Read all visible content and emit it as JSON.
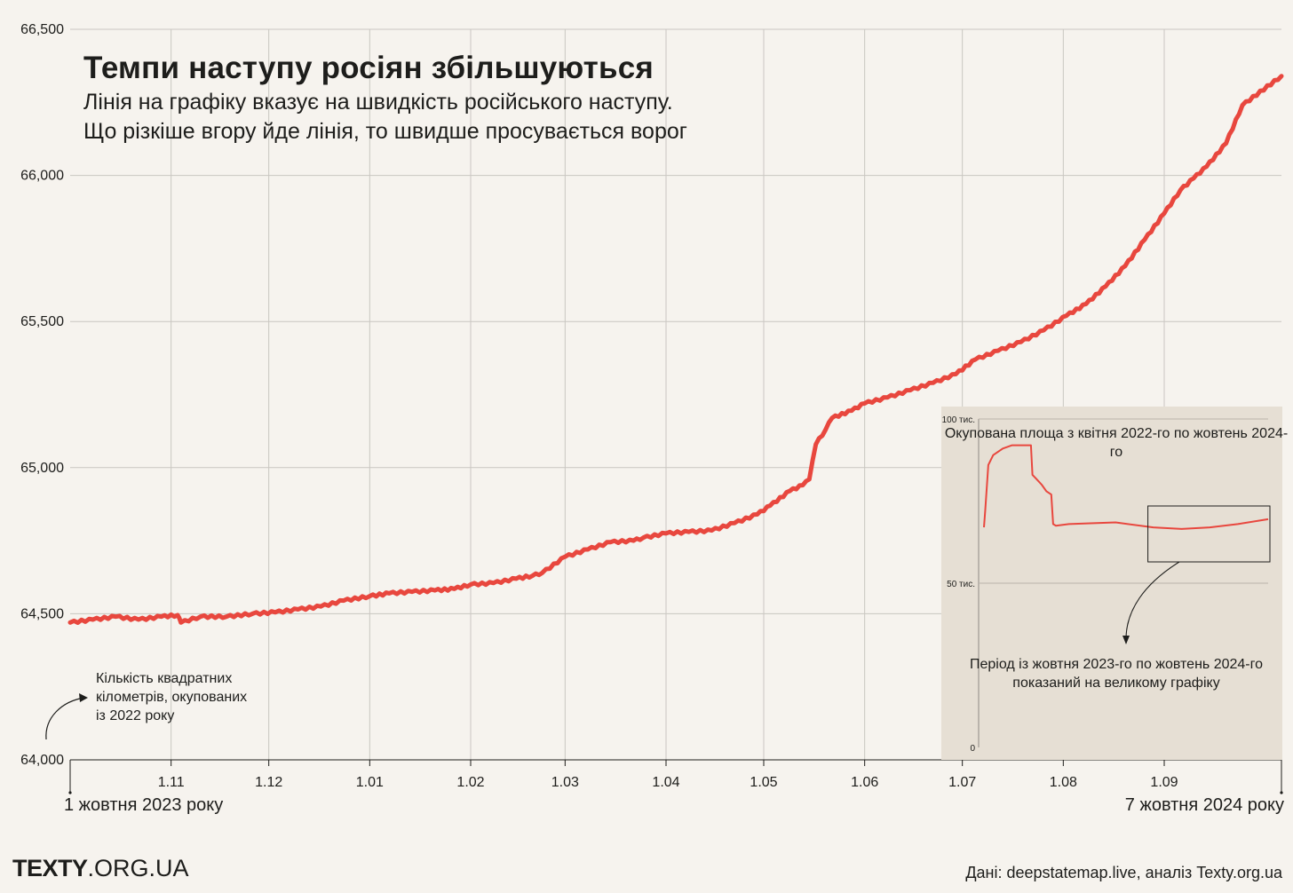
{
  "header": {
    "title": "Темпи наступу росіян збільшуються",
    "subtitle_line1": "Лінія на графіку вказує на швидкість російського наступу.",
    "subtitle_line2": "Що різкіше вгору йде лінія, то швидше просувається ворог"
  },
  "annotations": {
    "ylabel_line1": "Кількість квадратних",
    "ylabel_line2": "кілометрів, окупованих",
    "ylabel_line3": "із 2022 року",
    "start_date": "1 жовтня 2023 року",
    "end_date": "7 жовтня 2024 року"
  },
  "footer": {
    "brand_bold": "TEXTY",
    "brand_rest": ".ORG.UA",
    "source": "Дані: deepstatemap.live, аналіз Texty.org.ua"
  },
  "colors": {
    "line": "#e8473e",
    "background": "#f6f3ee",
    "inset_background": "#e6dfd4",
    "grid": "#c9c6c1"
  },
  "chart_data": [
    {
      "type": "line",
      "title": "Темпи наступу росіян збільшуються",
      "ylabel": "Кількість квадратних кілометрів, окупованих із 2022 року",
      "ylim": [
        64000,
        66500
      ],
      "yticks": [
        64000,
        64500,
        65000,
        65500,
        66000,
        66500
      ],
      "ytick_labels": [
        "64,000",
        "64,500",
        "65,000",
        "65,500",
        "66,000",
        "66,500"
      ],
      "xlim": [
        "2023-10-01",
        "2024-10-07"
      ],
      "xticks": [
        "2023-11-01",
        "2023-12-01",
        "2024-01-01",
        "2024-02-01",
        "2024-03-01",
        "2024-04-01",
        "2024-05-01",
        "2024-06-01",
        "2024-07-01",
        "2024-08-01",
        "2024-09-01"
      ],
      "xtick_labels": [
        "1.11",
        "1.12",
        "1.01",
        "1.02",
        "1.03",
        "1.04",
        "1.05",
        "1.06",
        "1.07",
        "1.08",
        "1.09"
      ],
      "grid": true,
      "series": [
        {
          "x": [
            "2023-10-01",
            "2023-10-08",
            "2023-10-15",
            "2023-10-22",
            "2023-10-29",
            "2023-11-03",
            "2023-11-04",
            "2023-11-10",
            "2023-11-18",
            "2023-11-26",
            "2023-12-03",
            "2023-12-10",
            "2023-12-17",
            "2023-12-24",
            "2024-01-01",
            "2024-01-07",
            "2024-01-14",
            "2024-01-21",
            "2024-01-27",
            "2024-02-01",
            "2024-02-08",
            "2024-02-15",
            "2024-02-20",
            "2024-02-23",
            "2024-03-01",
            "2024-03-08",
            "2024-03-15",
            "2024-03-22",
            "2024-03-25",
            "2024-04-01",
            "2024-04-08",
            "2024-04-15",
            "2024-04-22",
            "2024-04-29",
            "2024-05-03",
            "2024-05-09",
            "2024-05-13",
            "2024-05-15",
            "2024-05-17",
            "2024-05-20",
            "2024-05-22",
            "2024-05-28",
            "2024-06-01",
            "2024-06-08",
            "2024-06-15",
            "2024-06-22",
            "2024-06-29",
            "2024-07-05",
            "2024-07-12",
            "2024-07-19",
            "2024-07-26",
            "2024-08-02",
            "2024-08-08",
            "2024-08-14",
            "2024-08-20",
            "2024-08-26",
            "2024-09-01",
            "2024-09-06",
            "2024-09-10",
            "2024-09-14",
            "2024-09-20",
            "2024-09-25",
            "2024-10-07"
          ],
          "values": [
            64470,
            64480,
            64490,
            64480,
            64490,
            64495,
            64470,
            64490,
            64490,
            64500,
            64505,
            64515,
            64525,
            64545,
            64560,
            64570,
            64575,
            64580,
            64585,
            64600,
            64605,
            64620,
            64630,
            64640,
            64695,
            64720,
            64745,
            64750,
            64760,
            64775,
            64780,
            64785,
            64810,
            64840,
            64870,
            64920,
            64940,
            64960,
            65080,
            65130,
            65170,
            65195,
            65220,
            65240,
            65265,
            65290,
            65320,
            65370,
            65400,
            65430,
            65470,
            65520,
            65560,
            65620,
            65690,
            65780,
            65870,
            65950,
            65990,
            66030,
            66110,
            66240,
            66340
          ]
        }
      ]
    },
    {
      "type": "line",
      "title": "Окупована площа з квітня 2022-го по жовтень 2024-го",
      "ylim": [
        0,
        100000
      ],
      "yticks": [
        0,
        50000,
        100000
      ],
      "ytick_labels": [
        "0",
        "50 тис.",
        "100 тис."
      ],
      "grid": true,
      "note": "Період із жовтня 2023-го по жовтень 2024-го показаний на великому графіку",
      "series": [
        {
          "x": [
            "2022-04-01",
            "2022-04-05",
            "2022-04-15",
            "2022-05-01",
            "2022-06-01",
            "2022-07-01",
            "2022-08-01",
            "2022-08-31",
            "2022-09-05",
            "2022-09-15",
            "2022-09-25",
            "2022-10-05",
            "2022-10-20",
            "2022-11-05",
            "2022-11-11",
            "2022-11-20",
            "2023-01-01",
            "2023-06-01",
            "2023-10-01",
            "2024-01-01",
            "2024-04-01",
            "2024-07-01",
            "2024-10-07"
          ],
          "values": [
            67000,
            72000,
            86000,
            89000,
            91000,
            92000,
            92000,
            92000,
            83000,
            82000,
            81000,
            80000,
            78000,
            77000,
            68000,
            67500,
            68000,
            68500,
            67000,
            66500,
            67000,
            68000,
            69500
          ]
        }
      ],
      "highlight_range": [
        "2023-10-01",
        "2024-10-07"
      ]
    }
  ]
}
